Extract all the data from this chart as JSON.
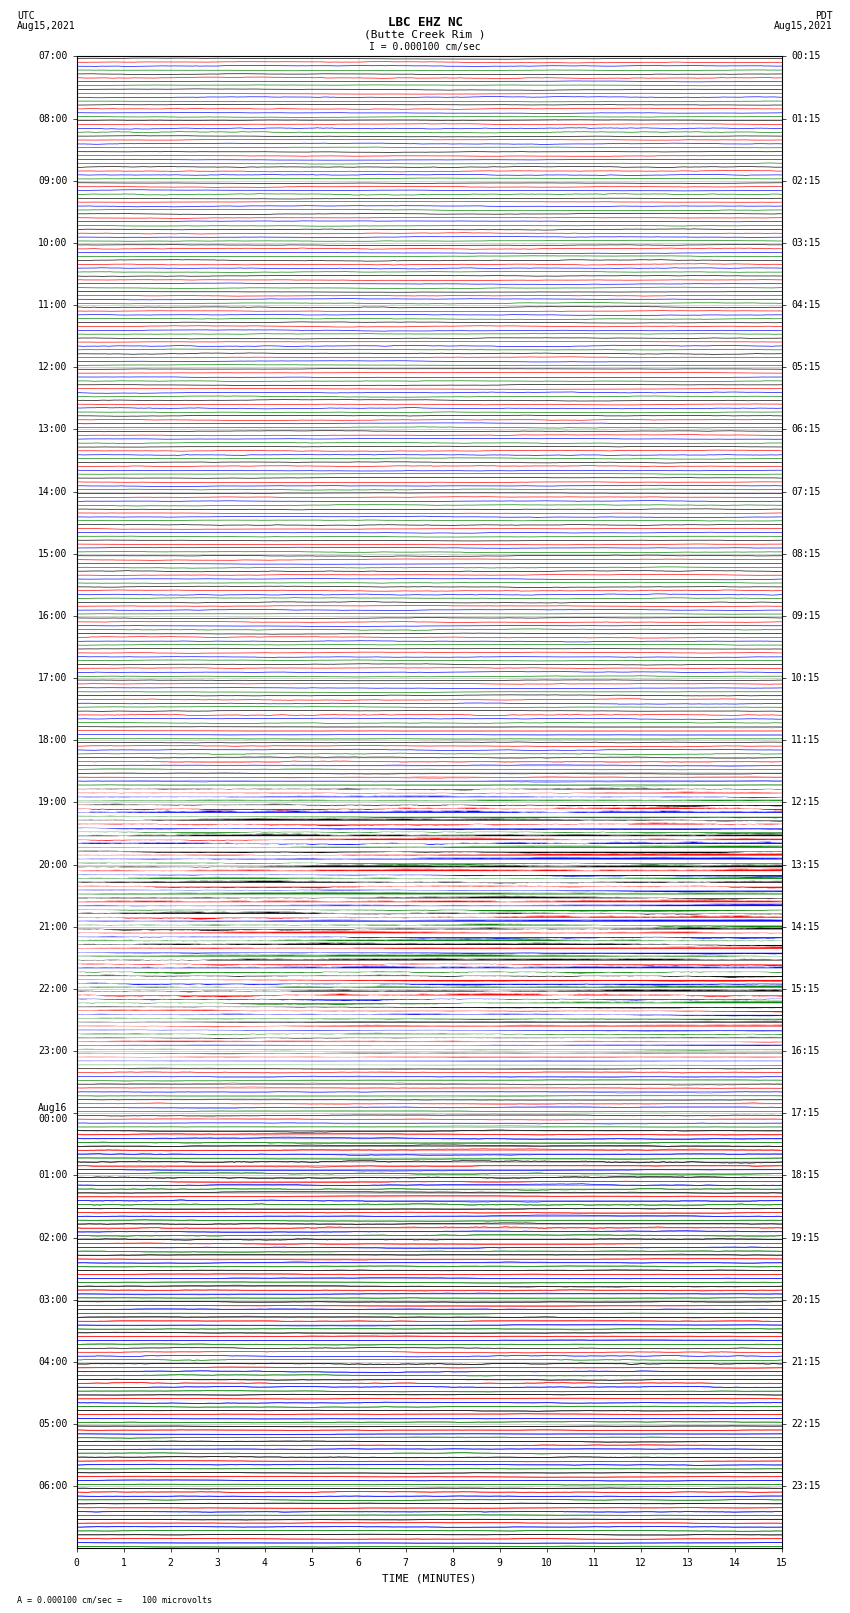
{
  "title_line1": "LBC EHZ NC",
  "title_line2": "(Butte Creek Rim )",
  "scale_text": "I = 0.000100 cm/sec",
  "left_label_top": "UTC",
  "left_label_date": "Aug15,2021",
  "right_label_top": "PDT",
  "right_label_date": "Aug15,2021",
  "xlabel": "TIME (MINUTES)",
  "bottom_note": "A = 0.000100 cm/sec =    100 microvolts",
  "utc_labels": [
    "07:00",
    "08:00",
    "09:00",
    "10:00",
    "11:00",
    "12:00",
    "13:00",
    "14:00",
    "15:00",
    "16:00",
    "17:00",
    "18:00",
    "19:00",
    "20:00",
    "21:00",
    "22:00",
    "23:00",
    "Aug16\n00:00",
    "01:00",
    "02:00",
    "03:00",
    "04:00",
    "05:00",
    "06:00"
  ],
  "pdt_labels": [
    "00:15",
    "01:15",
    "02:15",
    "03:15",
    "04:15",
    "05:15",
    "06:15",
    "07:15",
    "08:15",
    "09:15",
    "10:15",
    "11:15",
    "12:15",
    "13:15",
    "14:15",
    "15:15",
    "16:15",
    "17:15",
    "18:15",
    "19:15",
    "20:15",
    "21:15",
    "22:15",
    "23:15"
  ],
  "num_rows": 96,
  "traces_per_row": 4,
  "colors": [
    "black",
    "red",
    "blue",
    "green"
  ],
  "x_max": 15,
  "bg_color": "white",
  "fig_width": 8.5,
  "fig_height": 16.13,
  "title_fontsize": 9,
  "tick_fontsize": 7,
  "axis_label_fontsize": 8,
  "eq_onset_row": 44,
  "eq_main_rows": [
    44,
    45,
    46,
    47,
    48,
    49,
    50,
    51,
    52,
    53,
    54,
    55,
    56,
    57,
    58,
    59,
    60,
    61,
    62,
    63,
    64,
    65,
    66,
    67,
    68
  ],
  "aftershock_rows": [
    69,
    70,
    71,
    72,
    73,
    74,
    75,
    76,
    77,
    78,
    79,
    80,
    81,
    82
  ],
  "recovery_rows": [
    83,
    84,
    85,
    86,
    87,
    88,
    89,
    90,
    91,
    92,
    93,
    94,
    95
  ]
}
